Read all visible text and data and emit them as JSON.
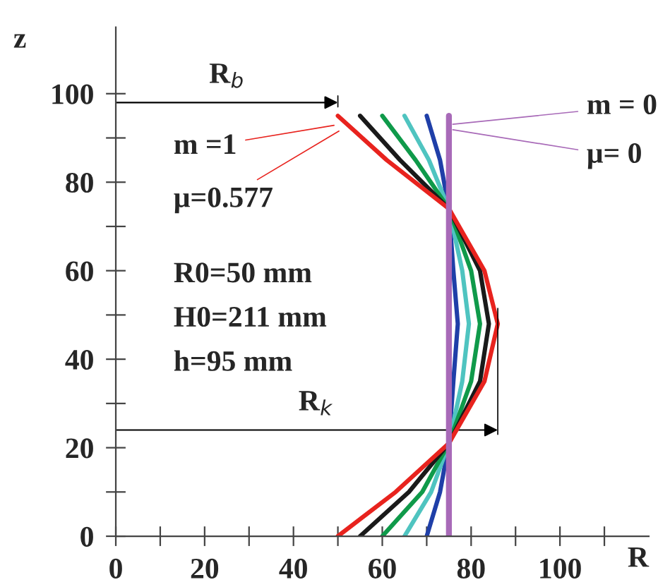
{
  "chart_data": {
    "type": "line",
    "xlabel": "R",
    "ylabel": "z",
    "xlim": [
      0,
      120
    ],
    "ylim": [
      0,
      115
    ],
    "xticks": [
      0,
      {
        "value": 10,
        "label": null
      },
      20,
      {
        "value": 30,
        "label": null
      },
      40,
      {
        "value": 50,
        "label": null
      },
      60,
      {
        "value": 70,
        "label": null
      },
      80,
      {
        "value": 90,
        "label": null
      },
      100,
      {
        "value": 110,
        "label": null
      }
    ],
    "yticks": [
      0,
      {
        "value": 10,
        "label": null
      },
      20,
      {
        "value": 30,
        "label": null
      },
      40,
      {
        "value": 50,
        "label": null
      },
      60,
      {
        "value": 70,
        "label": null
      },
      80,
      {
        "value": 90,
        "label": null
      },
      100
    ],
    "grid": false,
    "legend": false,
    "marker": "none",
    "line_style": "solid",
    "series": [
      {
        "color": "#1f3fa8",
        "x": [
          70,
          73,
          75,
          76,
          77,
          76,
          75,
          73,
          70
        ],
        "values": [
          0,
          10,
          21,
          35,
          48,
          60,
          74,
          85,
          95
        ]
      },
      {
        "color": "#4fc4c0",
        "x": [
          65,
          71,
          75,
          78,
          79.5,
          78,
          75,
          70.5,
          65
        ],
        "values": [
          0,
          10,
          21,
          35,
          48,
          60,
          74,
          85,
          95
        ]
      },
      {
        "color": "#0f9a4a",
        "x": [
          60,
          69,
          75,
          80,
          82,
          80,
          75,
          67.5,
          60
        ],
        "values": [
          0,
          10,
          21,
          35,
          48,
          60,
          74,
          85,
          95
        ]
      },
      {
        "color": "#1a1a1a",
        "x": [
          55,
          66,
          75,
          82,
          84,
          82,
          75,
          64,
          55
        ],
        "values": [
          0,
          10,
          21,
          35,
          48,
          60,
          74,
          85,
          95
        ]
      },
      {
        "color": "#e8231e",
        "x": [
          50,
          63,
          75,
          83,
          86,
          83,
          75,
          61,
          50
        ],
        "values": [
          0,
          10,
          21,
          35,
          48,
          60,
          74,
          85,
          95
        ]
      },
      {
        "color": "#a86ab8",
        "x": [
          75,
          75
        ],
        "values": [
          0,
          95
        ]
      }
    ],
    "annotations": [
      "R$_{b}$",
      "R$_{k}$",
      {
        "text": "m =1",
        "x": 50,
        "y": 93
      },
      {
        "text": "μ=0.577",
        "x": 51,
        "y": 92
      },
      {
        "text": "m = 0",
        "x": 75,
        "y": 93
      },
      {
        "text": "μ= 0",
        "x": 75,
        "y": 92
      },
      "R0=50 mm",
      "H0=211 mm",
      "h=95 mm"
    ]
  }
}
